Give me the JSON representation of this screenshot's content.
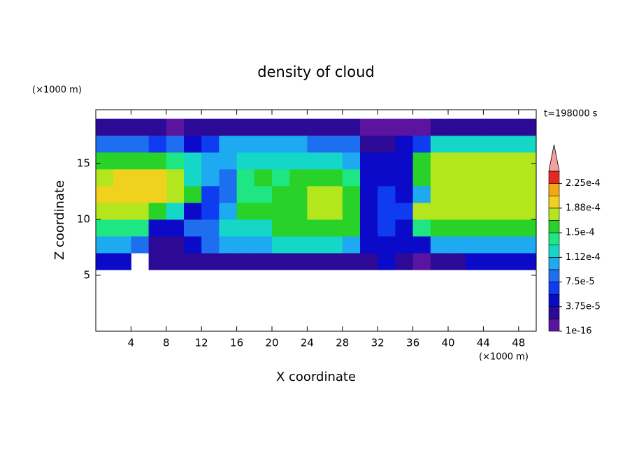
{
  "chart_data": {
    "type": "contour",
    "title": "density of cloud",
    "x_label": "X coordinate",
    "y_label": "Z coordinate",
    "x_unit": "(×1000 m)",
    "y_unit": "(×1000 m)",
    "time_label": "t=198000 s",
    "xlim": [
      0,
      50
    ],
    "ylim": [
      0,
      19.8
    ],
    "xticks": [
      4,
      8,
      12,
      16,
      20,
      24,
      28,
      32,
      36,
      40,
      44,
      48
    ],
    "yticks": [
      5,
      10,
      15
    ],
    "x_edges": [
      0,
      2,
      4,
      6,
      8,
      10,
      12,
      14,
      16,
      18,
      20,
      22,
      24,
      26,
      28,
      30,
      32,
      34,
      36,
      38,
      40,
      42,
      44,
      46,
      48,
      50
    ],
    "y_edges": [
      5.5,
      7,
      8.5,
      10,
      11.5,
      13,
      14.5,
      16,
      17.5,
      19
    ],
    "z": [
      [
        5e-05,
        5e-05,
        null,
        2.5e-05,
        2.5e-05,
        2.5e-05,
        2e-05,
        2.5e-05,
        2.5e-05,
        2.5e-05,
        3e-05,
        3e-05,
        3e-05,
        3e-05,
        3e-05,
        2e-05,
        4e-05,
        2e-05,
        1e-05,
        2e-05,
        3e-05,
        4e-05,
        4e-05,
        4e-05,
        4e-05
      ],
      [
        0.0001,
        0.0001,
        9e-05,
        3e-05,
        3e-05,
        4e-05,
        9e-05,
        0.0001,
        0.0001,
        0.00011,
        0.00012,
        0.00012,
        0.00012,
        0.00012,
        0.00011,
        4e-05,
        5e-05,
        4e-05,
        5e-05,
        0.0001,
        0.000105,
        0.000105,
        0.000105,
        0.000105,
        0.000105
      ],
      [
        0.000145,
        0.000145,
        0.00014,
        4e-05,
        5e-05,
        9e-05,
        9e-05,
        0.00013,
        0.00013,
        0.00013,
        0.000155,
        0.00016,
        0.00016,
        0.00016,
        0.00015,
        5e-05,
        6e-05,
        5e-05,
        0.00014,
        0.00015,
        0.00015,
        0.00015,
        0.00015,
        0.00015,
        0.00015
      ],
      [
        0.00017,
        0.00017,
        0.00017,
        0.00016,
        0.00012,
        5e-05,
        6e-05,
        0.0001,
        0.00016,
        0.000165,
        0.000165,
        0.000165,
        0.00017,
        0.00017,
        0.00016,
        5e-05,
        6e-05,
        6e-05,
        0.00017,
        0.00017,
        0.00017,
        0.00017,
        0.00017,
        0.00017,
        0.00017
      ],
      [
        0.00019,
        0.00019,
        0.00019,
        0.00019,
        0.00018,
        0.00016,
        7e-05,
        8e-05,
        0.00014,
        0.000145,
        0.00015,
        0.000165,
        0.00017,
        0.00017,
        0.000165,
        5e-05,
        6e-05,
        5e-05,
        0.0001,
        0.000175,
        0.000175,
        0.000175,
        0.000175,
        0.000175,
        0.000175
      ],
      [
        0.00018,
        0.00019,
        0.00019,
        0.00019,
        0.00018,
        0.00013,
        0.0001,
        9e-05,
        0.00014,
        0.00015,
        0.00014,
        0.00015,
        0.00015,
        0.00015,
        0.00014,
        4e-05,
        5e-05,
        4e-05,
        0.00016,
        0.000175,
        0.000175,
        0.000175,
        0.000175,
        0.000175,
        0.000175
      ],
      [
        0.00016,
        0.000165,
        0.000165,
        0.00016,
        0.00014,
        0.00012,
        0.0001,
        0.0001,
        0.00013,
        0.00013,
        0.00013,
        0.00012,
        0.00013,
        0.00012,
        0.00011,
        5e-05,
        5e-05,
        4e-05,
        0.00015,
        0.00017,
        0.00017,
        0.00017,
        0.00017,
        0.00017,
        0.00017
      ],
      [
        9e-05,
        9e-05,
        8e-05,
        6e-05,
        9e-05,
        5e-05,
        6e-05,
        0.0001,
        0.00011,
        0.00011,
        0.0001,
        0.0001,
        9e-05,
        9e-05,
        8e-05,
        3e-05,
        3e-05,
        4e-05,
        6e-05,
        0.00012,
        0.00013,
        0.00013,
        0.00013,
        0.00013,
        0.00012
      ],
      [
        3e-05,
        2e-05,
        2e-05,
        2e-05,
        1e-05,
        2e-05,
        3e-05,
        3e-05,
        2e-05,
        2e-05,
        3e-05,
        2e-05,
        2e-05,
        2e-05,
        2e-05,
        1e-05,
        1e-05,
        1e-05,
        1e-05,
        2e-05,
        2e-05,
        2e-05,
        3e-05,
        2e-05,
        3e-05
      ]
    ],
    "levels": [
      1e-16,
      1.875e-05,
      3.75e-05,
      5.625e-05,
      7.5e-05,
      9.375e-05,
      0.0001125,
      0.00013125,
      0.00015,
      0.00016875,
      0.0001875,
      0.00020625,
      0.000225,
      0.00024375
    ],
    "colors": [
      "#5a14a0",
      "#2d0a96",
      "#0a0ac8",
      "#0f3cf0",
      "#1e6ef0",
      "#1eaaf0",
      "#14d7c8",
      "#1ee682",
      "#28d228",
      "#b4e61e",
      "#f0d21e",
      "#f0aa14",
      "#e6281e"
    ],
    "extend_color": "#f5a0a0",
    "cbar_ticks": [
      {
        "value": 1e-16,
        "label": "1e-16"
      },
      {
        "value": 3.75e-05,
        "label": "3.75e-5"
      },
      {
        "value": 7.5e-05,
        "label": "7.5e-5"
      },
      {
        "value": 0.0001125,
        "label": "1.12e-4"
      },
      {
        "value": 0.00015,
        "label": "1.5e-4"
      },
      {
        "value": 0.0001875,
        "label": "1.88e-4"
      },
      {
        "value": 0.000225,
        "label": "2.25e-4"
      }
    ]
  }
}
